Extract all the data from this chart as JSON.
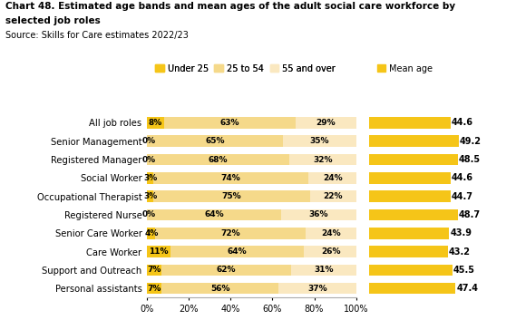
{
  "title_line1": "Chart 48. Estimated age bands and mean ages of the adult social care workforce by",
  "title_line2": "selected job roles",
  "source": "Source: Skills for Care estimates 2022/23",
  "categories": [
    "All job roles",
    "Senior Management",
    "Registered Manager",
    "Social Worker",
    "Occupational Therapist",
    "Registered Nurse",
    "Senior Care Worker",
    "Care Worker",
    "Support and Outreach",
    "Personal assistants"
  ],
  "under25": [
    8,
    0,
    0,
    3,
    3,
    0,
    4,
    11,
    7,
    7
  ],
  "age25to54": [
    63,
    65,
    68,
    74,
    75,
    64,
    72,
    64,
    62,
    56
  ],
  "over55": [
    29,
    35,
    32,
    24,
    22,
    36,
    24,
    26,
    31,
    37
  ],
  "mean_age": [
    44.6,
    49.2,
    48.5,
    44.6,
    44.7,
    48.7,
    43.9,
    43.2,
    45.5,
    47.4
  ],
  "color_under25": "#F5C518",
  "color_25to54": "#F5D98A",
  "color_over55": "#FAE8C0",
  "color_mean": "#F5C518",
  "under25_labels": [
    "8%",
    "0%",
    "0%",
    "3%",
    "3%",
    "0%",
    "4%",
    "11%",
    "7%",
    "7%"
  ],
  "age25to54_labels": [
    "63%",
    "65%",
    "68%",
    "74%",
    "75%",
    "64%",
    "72%",
    "64%",
    "62%",
    "56%"
  ],
  "over55_labels": [
    "29%",
    "35%",
    "32%",
    "24%",
    "22%",
    "36%",
    "24%",
    "26%",
    "31%",
    "37%"
  ],
  "mean_age_labels": [
    "44.6",
    "49.2",
    "48.5",
    "44.6",
    "44.7",
    "48.7",
    "43.9",
    "43.2",
    "45.5",
    "47.4"
  ],
  "mean_age_max": 55
}
